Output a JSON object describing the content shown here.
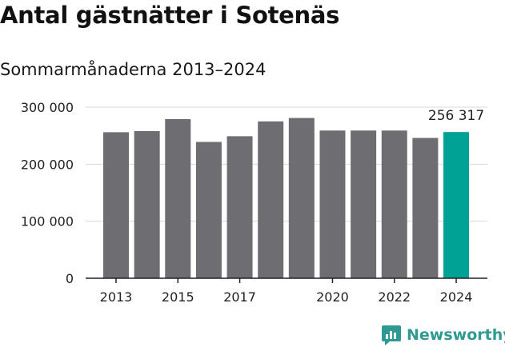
{
  "title": "Antal gästnätter i Sotenäs",
  "subtitle": "Sommarmånaderna 2013–2024",
  "brand": {
    "name": "Newsworthy",
    "icon": "newsworthy-logo-icon",
    "color": "#2e9a91"
  },
  "colors": {
    "bar": "#6e6d72",
    "highlight": "#00a296",
    "grid": "#d9d9d9",
    "axis": "#222222"
  },
  "chart_data": {
    "type": "bar",
    "categories": [
      "2013",
      "2014",
      "2015",
      "2016",
      "2017",
      "2018",
      "2019",
      "2020",
      "2021",
      "2022",
      "2023",
      "2024"
    ],
    "x_tick_labels": [
      "2013",
      "",
      "2015",
      "",
      "2017",
      "",
      "",
      "2020",
      "",
      "2022",
      "",
      "2024"
    ],
    "values": [
      256000,
      258000,
      279000,
      239000,
      249000,
      275000,
      281000,
      259000,
      259000,
      259000,
      246000,
      256317
    ],
    "highlight_index": 11,
    "data_labels": [
      {
        "index": 11,
        "text": "256 317"
      }
    ],
    "ylim": [
      0,
      300000
    ],
    "y_ticks": [
      {
        "value": 0,
        "label": "0"
      },
      {
        "value": 100000,
        "label": "100 000"
      },
      {
        "value": 200000,
        "label": "200 000"
      },
      {
        "value": 300000,
        "label": "300 000"
      }
    ],
    "grid": true,
    "xlabel": "",
    "ylabel": ""
  }
}
